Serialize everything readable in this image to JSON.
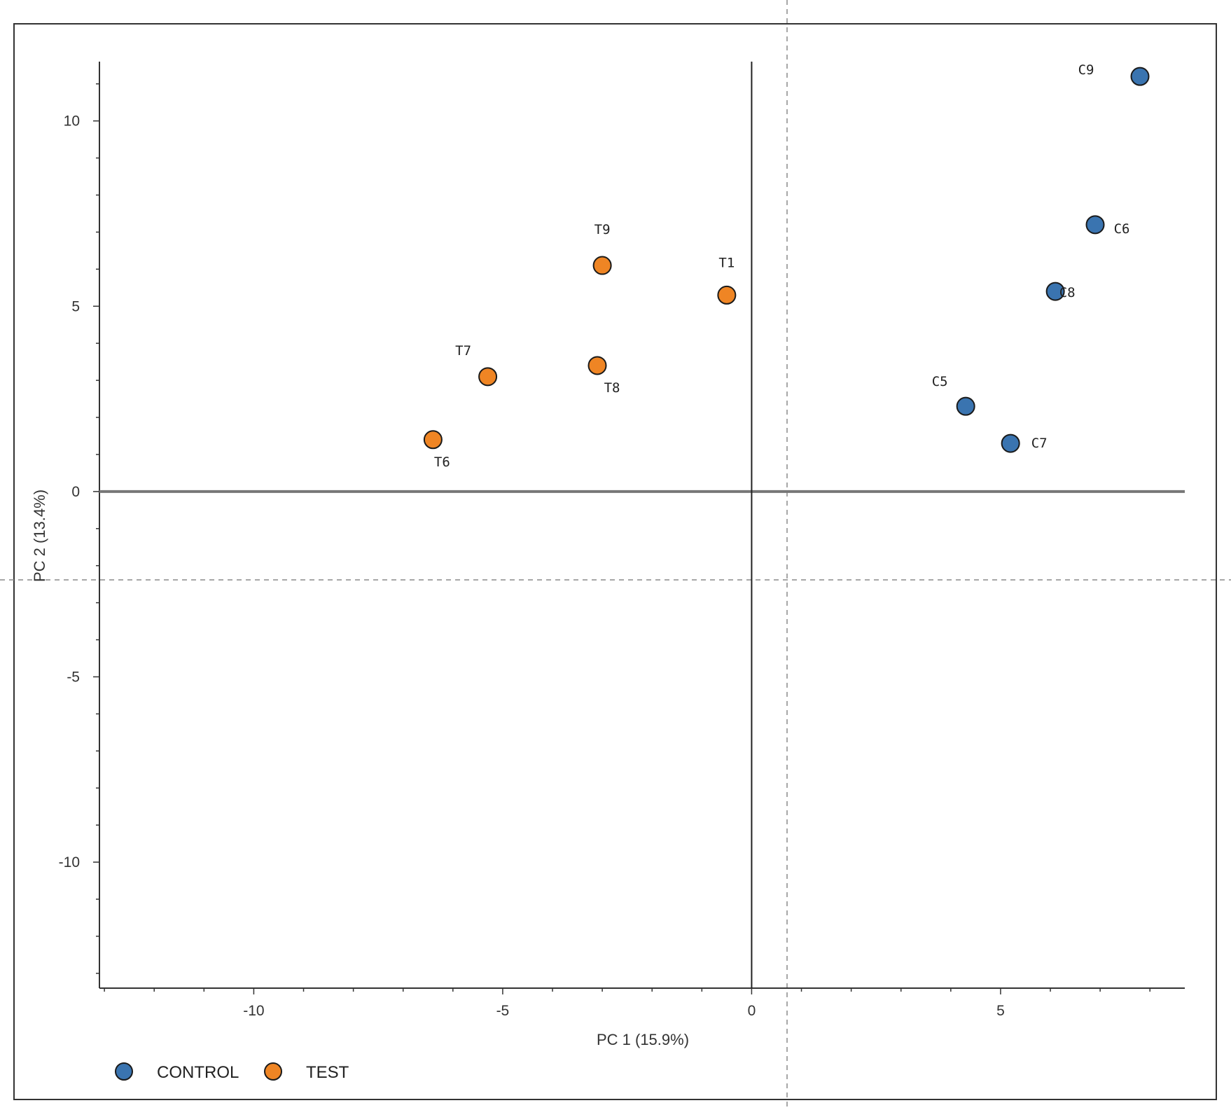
{
  "chart_data": {
    "type": "scatter",
    "title": "",
    "xlabel": "PC 1 (15.9%)",
    "ylabel": "PC 2 (13.4%)",
    "xlim": [
      -13.1,
      8.7
    ],
    "ylim": [
      -13.4,
      11.6
    ],
    "xticks": [
      -10,
      -5,
      0,
      5
    ],
    "yticks": [
      10,
      5,
      0,
      -5,
      -10
    ],
    "grid": false,
    "legend_position": "bottom-left",
    "series": [
      {
        "name": "CONTROL",
        "color": "#3a74b0",
        "points": [
          {
            "label": "C9",
            "x": 7.8,
            "y": 11.2
          },
          {
            "label": "C6",
            "x": 6.9,
            "y": 7.2
          },
          {
            "label": "C8",
            "x": 6.1,
            "y": 5.4
          },
          {
            "label": "C5",
            "x": 4.3,
            "y": 2.3
          },
          {
            "label": "C7",
            "x": 5.2,
            "y": 1.3
          }
        ]
      },
      {
        "name": "TEST",
        "color": "#ef8524",
        "points": [
          {
            "label": "T9",
            "x": -3.0,
            "y": 6.1
          },
          {
            "label": "T1",
            "x": -0.5,
            "y": 5.3
          },
          {
            "label": "T7",
            "x": -5.3,
            "y": 3.1
          },
          {
            "label": "T8",
            "x": -3.1,
            "y": 3.4
          },
          {
            "label": "T6",
            "x": -6.4,
            "y": 1.4
          }
        ]
      }
    ]
  }
}
